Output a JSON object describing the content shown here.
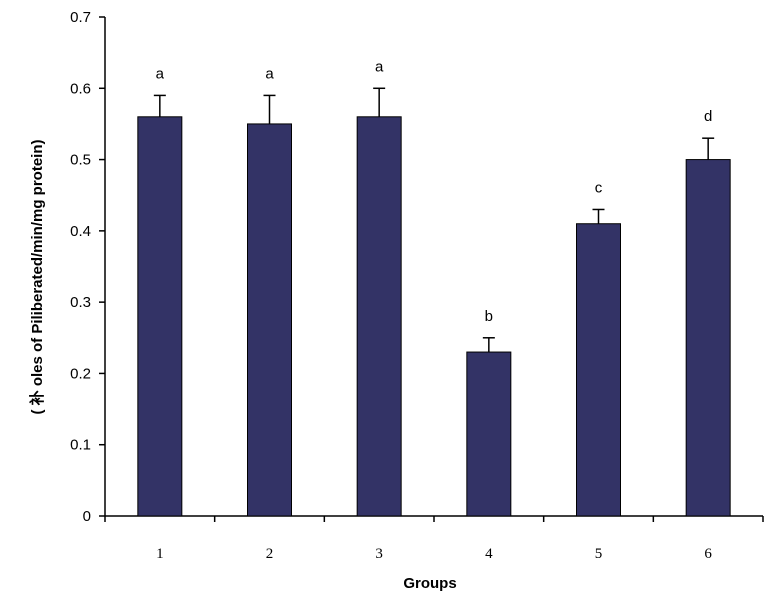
{
  "chart_data": {
    "type": "bar",
    "title": "",
    "xlabel": "Groups",
    "ylabel": "( 补 oles of Piliberated/min/mg protein)",
    "categories": [
      "1",
      "2",
      "3",
      "4",
      "5",
      "6"
    ],
    "values": [
      0.56,
      0.55,
      0.56,
      0.23,
      0.41,
      0.5
    ],
    "error_upper": [
      0.03,
      0.04,
      0.04,
      0.02,
      0.02,
      0.03
    ],
    "significance_labels": [
      "a",
      "a",
      "a",
      "b",
      "c",
      "d"
    ],
    "ylim": [
      0,
      0.7
    ],
    "yticks": [
      0,
      0.1,
      0.2,
      0.3,
      0.4,
      0.5,
      0.6,
      0.7
    ],
    "ytick_labels": [
      "0",
      "0.1",
      "0.2",
      "0.3",
      "0.4",
      "0.5",
      "0.6",
      "0.7"
    ],
    "grid": false,
    "legend": "none",
    "bar_color": "#333366"
  }
}
